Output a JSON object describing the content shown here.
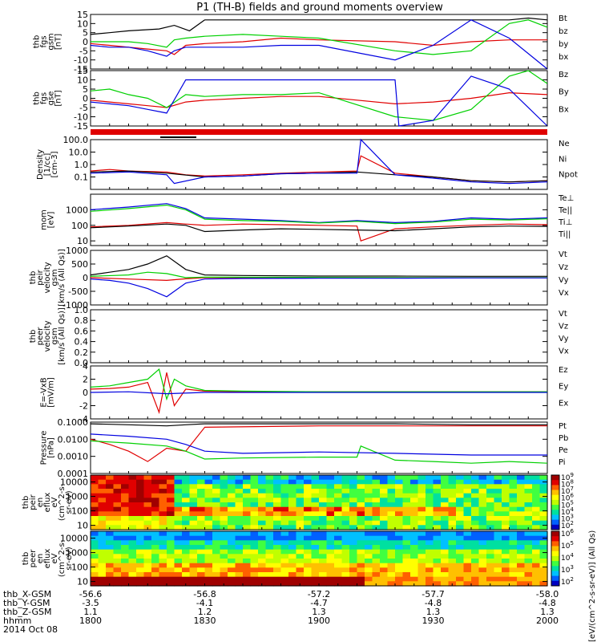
{
  "title": "P1 (TH-B) fields and ground moments overview",
  "footer": {
    "row_labels": [
      "thb_X-GSM",
      "thb_Y-GSM",
      "thb_Z-GSM",
      "hhmm",
      "2014 Oct 08"
    ],
    "columns": [
      {
        "x": "-56.6",
        "y": "-3.5",
        "z": "1.1",
        "hhmm": "1800"
      },
      {
        "x": "-56.8",
        "y": "-4.1",
        "z": "1.2",
        "hhmm": "1830"
      },
      {
        "x": "-57.2",
        "y": "-4.7",
        "z": "1.3",
        "hhmm": "1900"
      },
      {
        "x": "-57.7",
        "y": "-4.8",
        "z": "1.3",
        "hhmm": "1930"
      },
      {
        "x": "-58.0",
        "y": "-4.8",
        "z": "1.3",
        "hhmm": "2000"
      }
    ]
  },
  "colorbar_label": "[eV/(cm^2-s-sr-eV)] (All Qs)",
  "colors": {
    "black": "#000000",
    "red": "#e00000",
    "green": "#00d000",
    "blue": "#0000e0",
    "background": "#ffffff"
  },
  "chart_data": [
    {
      "type": "line",
      "panel": "fgs_gsm",
      "ylabel": [
        "thb",
        "fgs",
        "gsm",
        "[nT]"
      ],
      "ylim": [
        -15,
        15
      ],
      "yticks": [
        15,
        10,
        5,
        0,
        -5,
        -10,
        -15
      ],
      "xlim": [
        0,
        120
      ],
      "series": [
        {
          "name": "Bt",
          "color": "#000000",
          "x": [
            0,
            5,
            10,
            18,
            22,
            26,
            30,
            40,
            50,
            60,
            80,
            100,
            105,
            110,
            115,
            120
          ],
          "y": [
            4,
            5,
            6,
            7,
            9,
            6,
            12,
            12,
            12,
            12,
            12,
            12,
            12,
            12,
            13,
            12
          ]
        },
        {
          "name": "bz",
          "color": "#e00000",
          "x": [
            0,
            5,
            10,
            15,
            20,
            22,
            25,
            30,
            40,
            50,
            60,
            80,
            90,
            100,
            110,
            120
          ],
          "y": [
            -1,
            -2,
            -3,
            -4,
            -5,
            -7,
            -2,
            -1,
            0,
            2,
            1,
            0,
            -2,
            0,
            1,
            1
          ]
        },
        {
          "name": "by",
          "color": "#00d000",
          "x": [
            0,
            5,
            10,
            15,
            20,
            22,
            25,
            30,
            40,
            50,
            60,
            80,
            90,
            100,
            110,
            115,
            120
          ],
          "y": [
            0,
            0,
            0,
            -1,
            -3,
            1,
            2,
            3,
            4,
            3,
            2,
            -5,
            -7,
            -5,
            10,
            12,
            8
          ]
        },
        {
          "name": "bx",
          "color": "#0000e0",
          "x": [
            0,
            5,
            10,
            15,
            20,
            22,
            25,
            30,
            40,
            50,
            60,
            80,
            90,
            100,
            110,
            120
          ],
          "y": [
            -2,
            -3,
            -3,
            -5,
            -8,
            -5,
            -3,
            -3,
            -3,
            -2,
            -2,
            -10,
            -2,
            12,
            2,
            -15
          ]
        }
      ]
    },
    {
      "type": "line",
      "panel": "fgs_gse",
      "ylabel": [
        "thb",
        "fgs",
        "gse",
        "[nT]"
      ],
      "ylim": [
        -15,
        15
      ],
      "yticks": [
        15,
        10,
        5,
        0,
        -5,
        -10,
        -15
      ],
      "xlim": [
        0,
        120
      ],
      "series": [
        {
          "name": "Bz",
          "color": "#e00000",
          "x": [
            0,
            5,
            10,
            15,
            20,
            25,
            30,
            40,
            50,
            60,
            80,
            90,
            100,
            110,
            120
          ],
          "y": [
            -1,
            -2,
            -3,
            -4,
            -5,
            -2,
            -1,
            0,
            1,
            1,
            -3,
            -2,
            0,
            3,
            2
          ]
        },
        {
          "name": "By",
          "color": "#00d000",
          "x": [
            0,
            5,
            10,
            15,
            20,
            25,
            30,
            40,
            50,
            60,
            80,
            90,
            100,
            110,
            115,
            120
          ],
          "y": [
            4,
            5,
            2,
            0,
            -5,
            2,
            1,
            2,
            2,
            3,
            -10,
            -12,
            -6,
            12,
            15,
            8
          ]
        },
        {
          "name": "Bx",
          "color": "#0000e0",
          "x": [
            0,
            5,
            10,
            15,
            20,
            25,
            30,
            40,
            50,
            60,
            80,
            81,
            90,
            100,
            110,
            120
          ],
          "y": [
            -2,
            -3,
            -4,
            -6,
            -8,
            10,
            10,
            10,
            10,
            10,
            10,
            -15,
            -12,
            12,
            5,
            -15
          ]
        }
      ]
    },
    {
      "type": "line",
      "panel": "density",
      "ylabel": [
        "Density",
        "[1/cc]",
        "[cm-3]"
      ],
      "ylim": [
        0.01,
        100
      ],
      "yscale": "log",
      "yticks": [
        "100.0",
        "10.0",
        "1.0",
        "0.1"
      ],
      "xlim": [
        0,
        120
      ],
      "series": [
        {
          "name": "Ne",
          "color": "#e00000",
          "x": [
            0,
            5,
            10,
            20,
            25,
            30,
            40,
            50,
            60,
            70,
            71,
            80,
            90,
            100,
            110,
            120
          ],
          "y": [
            0.3,
            0.4,
            0.3,
            0.25,
            0.15,
            0.12,
            0.15,
            0.2,
            0.25,
            0.3,
            5,
            0.2,
            0.1,
            0.05,
            0.04,
            0.05
          ]
        },
        {
          "name": "Ni",
          "color": "#000000",
          "x": [
            0,
            10,
            20,
            30,
            40,
            50,
            60,
            70,
            80,
            90,
            100,
            110,
            120
          ],
          "y": [
            0.25,
            0.3,
            0.2,
            0.1,
            0.12,
            0.18,
            0.2,
            0.25,
            0.15,
            0.1,
            0.05,
            0.04,
            0.05
          ]
        },
        {
          "name": "Npot",
          "color": "#0000e0",
          "x": [
            0,
            10,
            20,
            22,
            30,
            40,
            50,
            60,
            70,
            71,
            80,
            90,
            100,
            110,
            120
          ],
          "y": [
            0.2,
            0.25,
            0.15,
            0.03,
            0.1,
            0.12,
            0.18,
            0.2,
            0.2,
            100,
            0.15,
            0.08,
            0.04,
            0.03,
            0.04
          ]
        }
      ]
    },
    {
      "type": "line",
      "panel": "temperature",
      "ylabel": [
        "mom",
        "[eV]"
      ],
      "ylim": [
        5,
        10000
      ],
      "yscale": "log",
      "yticks": [
        "1000",
        "100",
        "10"
      ],
      "xlim": [
        0,
        120
      ],
      "series": [
        {
          "name": "Te⊥",
          "color": "#e00000",
          "x": [
            0,
            10,
            20,
            25,
            30,
            40,
            50,
            60,
            70,
            71,
            80,
            90,
            100,
            110,
            120
          ],
          "y": [
            80,
            100,
            150,
            120,
            100,
            120,
            110,
            100,
            90,
            10,
            60,
            80,
            100,
            120,
            110
          ]
        },
        {
          "name": "Te||",
          "color": "#000000",
          "x": [
            0,
            10,
            20,
            25,
            30,
            40,
            50,
            60,
            70,
            80,
            90,
            100,
            110,
            120
          ],
          "y": [
            70,
            90,
            120,
            100,
            40,
            50,
            60,
            55,
            50,
            45,
            60,
            80,
            90,
            85
          ]
        },
        {
          "name": "Ti⊥",
          "color": "#0000e0",
          "x": [
            0,
            10,
            20,
            25,
            30,
            40,
            50,
            60,
            70,
            80,
            90,
            100,
            110,
            120
          ],
          "y": [
            1000,
            1500,
            2500,
            1200,
            300,
            250,
            200,
            150,
            200,
            150,
            180,
            300,
            250,
            300
          ]
        },
        {
          "name": "Ti||",
          "color": "#00d000",
          "x": [
            0,
            10,
            20,
            25,
            30,
            40,
            50,
            60,
            70,
            80,
            90,
            100,
            110,
            120
          ],
          "y": [
            800,
            1200,
            2000,
            1000,
            250,
            200,
            180,
            140,
            180,
            130,
            160,
            250,
            220,
            260
          ]
        }
      ]
    },
    {
      "type": "line",
      "panel": "peir_velocity",
      "ylabel": [
        "thb",
        "peir",
        "velocity",
        "gsm",
        "[km/s (All Qs)]"
      ],
      "ylim": [
        -1000,
        1000
      ],
      "yticks": [
        1000,
        500,
        0,
        -500,
        -1000
      ],
      "xlim": [
        0,
        120
      ],
      "series": [
        {
          "name": "Vt",
          "color": "#000000",
          "x": [
            0,
            5,
            10,
            15,
            20,
            25,
            30,
            40,
            60,
            80,
            100,
            120
          ],
          "y": [
            100,
            200,
            300,
            500,
            800,
            300,
            100,
            80,
            60,
            60,
            50,
            50
          ]
        },
        {
          "name": "Vz",
          "color": "#e00000",
          "x": [
            0,
            10,
            20,
            25,
            30,
            60,
            90,
            120
          ],
          "y": [
            0,
            -50,
            -100,
            -40,
            0,
            0,
            0,
            0
          ]
        },
        {
          "name": "Vy",
          "color": "#00d000",
          "x": [
            0,
            10,
            15,
            20,
            25,
            30,
            60,
            90,
            120
          ],
          "y": [
            50,
            100,
            200,
            150,
            0,
            20,
            10,
            0,
            0
          ]
        },
        {
          "name": "Vx",
          "color": "#0000e0",
          "x": [
            0,
            5,
            10,
            15,
            20,
            25,
            30,
            40,
            60,
            80,
            100,
            120
          ],
          "y": [
            -50,
            -100,
            -200,
            -400,
            -700,
            -200,
            -50,
            -30,
            -20,
            -20,
            -10,
            -10
          ]
        }
      ]
    },
    {
      "type": "line",
      "panel": "peer_velocity",
      "ylabel": [
        "thb",
        "peer",
        "velocity",
        "gsm",
        "[km/s (All Qs)]"
      ],
      "ylim": [
        0.0,
        1.0
      ],
      "yticks": [
        "1.0",
        "0.8",
        "0.6",
        "0.4",
        "0.2",
        "0.0"
      ],
      "xlim": [
        0,
        120
      ],
      "legend": [
        "Vt",
        "Vz",
        "Vy",
        "Vx"
      ],
      "legend_colors": [
        "#000000",
        "#e00000",
        "#00d000",
        "#0000e0"
      ],
      "series": []
    },
    {
      "type": "line",
      "panel": "efield",
      "ylabel": [
        "E=-VxB",
        "[mV/m]"
      ],
      "ylim": [
        -4,
        4
      ],
      "yticks": [
        4,
        2,
        0,
        -2,
        -4
      ],
      "xlim": [
        0,
        120
      ],
      "series": [
        {
          "name": "Ez",
          "color": "#e00000",
          "x": [
            0,
            5,
            10,
            15,
            18,
            20,
            22,
            25,
            30,
            40,
            60,
            80,
            100,
            120
          ],
          "y": [
            0.5,
            0.6,
            0.8,
            1.5,
            -3,
            3,
            -2,
            0.5,
            0.2,
            0.1,
            0.1,
            0.1,
            0.1,
            0.1
          ]
        },
        {
          "name": "Ey",
          "color": "#00d000",
          "x": [
            0,
            5,
            10,
            15,
            18,
            20,
            22,
            25,
            30,
            40,
            60,
            80,
            100,
            120
          ],
          "y": [
            0.8,
            1,
            1.5,
            2,
            3.5,
            -1,
            2,
            1,
            0.3,
            0.2,
            0.1,
            0.1,
            0.1,
            0.1
          ]
        },
        {
          "name": "Ex",
          "color": "#0000e0",
          "x": [
            0,
            10,
            20,
            30,
            60,
            120
          ],
          "y": [
            0,
            0.1,
            -0.2,
            0,
            0,
            0
          ]
        }
      ]
    },
    {
      "type": "line",
      "panel": "pressure",
      "ylabel": [
        "Pressure",
        "[nPa]"
      ],
      "ylim": [
        0.0001,
        0.1
      ],
      "yscale": "log",
      "yticks": [
        "0.1000",
        "0.0100",
        "0.0010",
        "0.0001"
      ],
      "xlim": [
        0,
        120
      ],
      "series": [
        {
          "name": "Pt",
          "color": "#000000",
          "x": [
            0,
            10,
            20,
            25,
            30,
            60,
            80,
            100,
            120
          ],
          "y": [
            0.08,
            0.07,
            0.06,
            0.07,
            0.08,
            0.08,
            0.08,
            0.07,
            0.07
          ]
        },
        {
          "name": "Pb",
          "color": "#e00000",
          "x": [
            0,
            5,
            10,
            15,
            20,
            25,
            30,
            60,
            120
          ],
          "y": [
            0.01,
            0.005,
            0.002,
            0.0005,
            0.003,
            0.002,
            0.05,
            0.06,
            0.06
          ]
        },
        {
          "name": "Pe",
          "color": "#00d000",
          "x": [
            0,
            10,
            20,
            25,
            30,
            40,
            60,
            70,
            71,
            80,
            90,
            100,
            110,
            120
          ],
          "y": [
            0.008,
            0.006,
            0.004,
            0.002,
            0.0007,
            0.0008,
            0.0009,
            0.0009,
            0.004,
            0.0006,
            0.0005,
            0.0004,
            0.0005,
            0.0004
          ]
        },
        {
          "name": "Pi",
          "color": "#0000e0",
          "x": [
            0,
            10,
            20,
            25,
            30,
            40,
            60,
            80,
            100,
            120
          ],
          "y": [
            0.02,
            0.015,
            0.01,
            0.005,
            0.002,
            0.0015,
            0.0018,
            0.0015,
            0.0012,
            0.0012
          ]
        }
      ]
    },
    {
      "type": "heatmap",
      "panel": "peir_eflux",
      "ylabel": [
        "thb",
        "peir",
        "en",
        "eflux",
        "eV",
        "(cm^2-s-",
        "sr-eV)"
      ],
      "ylim": [
        5,
        30000
      ],
      "yscale": "log",
      "yticks": [
        "10000",
        "1000",
        "100",
        "10"
      ],
      "colorbar_ticks": [
        "10^9",
        "10^8",
        "10^7",
        "10^6",
        "10^5",
        "10^4",
        "10^3",
        "10^2"
      ]
    },
    {
      "type": "heatmap",
      "panel": "peer_eflux",
      "ylabel": [
        "thb",
        "peer",
        "en",
        "eflux",
        "eV",
        "(cm^2-s-",
        "sr-eV)"
      ],
      "ylim": [
        5,
        30000
      ],
      "yscale": "log",
      "yticks": [
        "10000",
        "1000",
        "100",
        "10"
      ],
      "colorbar_ticks": [
        "10^6",
        "10^5",
        "10^4",
        "10^3",
        "10^2"
      ]
    }
  ]
}
